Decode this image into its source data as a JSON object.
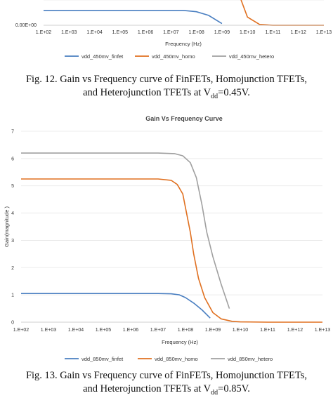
{
  "fig12": {
    "caption_line1": "Fig.  12. Gain vs Frequency curve of FinFETs, Homojunction TFETs,",
    "caption_line2_a": "and Heterojunction TFETs at V",
    "caption_line2_sub": "dd",
    "caption_line2_b": "=0.45V."
  },
  "fig13": {
    "caption_line1": "Fig.  13. Gain vs Frequency curve of FinFETs, Homojunction TFETs,",
    "caption_line2_a": "and Heterojunction TFETs at V",
    "caption_line2_sub": "dd",
    "caption_line2_b": "=0.85V."
  },
  "chart_data": [
    {
      "type": "line",
      "title": "",
      "xlabel": "Frequency (Hz)",
      "ylabel": "",
      "x_log": true,
      "x_ticks": [
        "1.E+02",
        "1.E+03",
        "1.E+04",
        "1.E+05",
        "1.E+06",
        "1.E+07",
        "1.E+08",
        "1.E+09",
        "1.E+10",
        "1.E+11",
        "1.E+12",
        "1.E+13"
      ],
      "y_ticks": [
        "0.00E+00"
      ],
      "legend_position": "bottom",
      "grid": true,
      "colors": {
        "finfet": "#4a7fc1",
        "homo": "#e07020",
        "hetero": "#a0a0a0"
      },
      "series": [
        {
          "name": "vdd_450mv_finfet",
          "x": [
            100,
            10000000,
            30000000,
            100000000,
            300000000,
            1000000000
          ],
          "y": [
            0.9,
            0.9,
            0.9,
            0.82,
            0.6,
            0.1
          ]
        },
        {
          "name": "vdd_450mv_homo",
          "x": [
            1500000000,
            3000000000,
            5000000000,
            10000000000,
            30000000000,
            100000000000,
            10000000000000
          ],
          "y": [
            9.0,
            4.5,
            2.0,
            0.5,
            0.05,
            0.0,
            0.0
          ]
        },
        {
          "name": "vdd_450mv_hetero",
          "x": [
            2500000000,
            4000000000,
            6000000000
          ],
          "y": [
            9.0,
            5.0,
            3.0
          ]
        }
      ]
    },
    {
      "type": "line",
      "title": "Gain Vs Frequency Curve",
      "xlabel": "Frequency (Hz)",
      "ylabel": "Gain(magnitude )",
      "x_log": true,
      "x_ticks": [
        "1.E+02",
        "1.E+03",
        "1.E+04",
        "1.E+05",
        "1.E+06",
        "1.E+07",
        "1.E+08",
        "1.E+09",
        "1.E+10",
        "1.E+11",
        "1.E+12",
        "1.E+13"
      ],
      "y_ticks": [
        "0",
        "1",
        "2",
        "3",
        "4",
        "5",
        "6",
        "7"
      ],
      "ylim": [
        0,
        7
      ],
      "legend_position": "bottom",
      "grid": true,
      "colors": {
        "finfet": "#4a7fc1",
        "homo": "#e07020",
        "hetero": "#a0a0a0"
      },
      "series": [
        {
          "name": "vdd_850mv_finfet",
          "x": [
            100,
            1000,
            10000,
            100000,
            1000000,
            10000000,
            30000000,
            60000000,
            100000000,
            200000000,
            400000000,
            800000000
          ],
          "y": [
            1.05,
            1.05,
            1.05,
            1.05,
            1.05,
            1.05,
            1.04,
            1.0,
            0.9,
            0.7,
            0.45,
            0.15
          ]
        },
        {
          "name": "vdd_850mv_homo",
          "x": [
            100,
            1000,
            10000,
            100000,
            1000000,
            10000000,
            30000000,
            50000000,
            80000000,
            100000000,
            150000000,
            200000000,
            300000000,
            500000000,
            1000000000,
            2000000000,
            5000000000,
            10000000000,
            100000000000,
            10000000000000
          ],
          "y": [
            5.25,
            5.25,
            5.25,
            5.25,
            5.25,
            5.25,
            5.2,
            5.05,
            4.7,
            4.2,
            3.3,
            2.5,
            1.6,
            0.9,
            0.35,
            0.12,
            0.03,
            0.01,
            0.0,
            0.0
          ]
        },
        {
          "name": "vdd_850mv_hetero",
          "x": [
            100,
            1000,
            10000,
            100000,
            1000000,
            10000000,
            40000000,
            80000000,
            150000000,
            250000000,
            400000000,
            600000000,
            1000000000,
            2000000000,
            4000000000
          ],
          "y": [
            6.2,
            6.2,
            6.2,
            6.2,
            6.2,
            6.2,
            6.18,
            6.1,
            5.85,
            5.3,
            4.3,
            3.3,
            2.4,
            1.4,
            0.5
          ]
        }
      ]
    }
  ]
}
